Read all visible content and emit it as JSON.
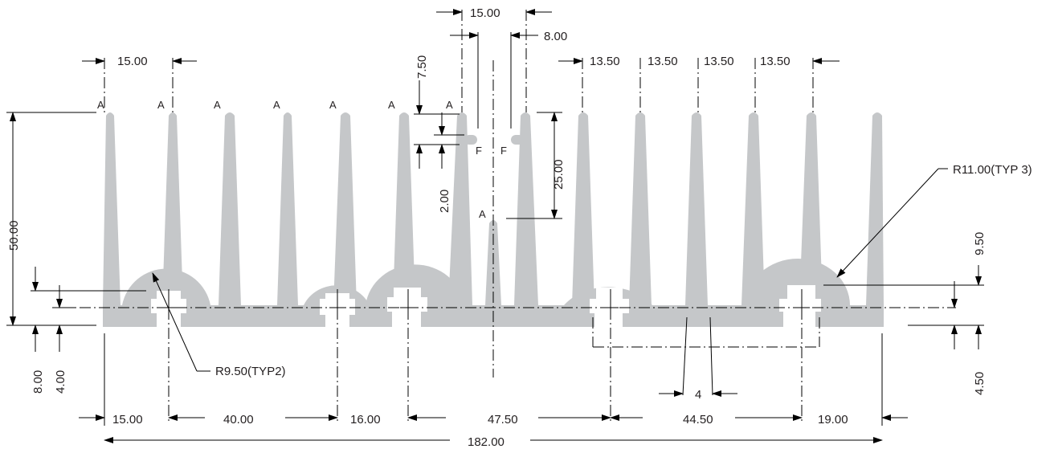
{
  "drawing": {
    "top_dims": {
      "fin_pitch_left": "15.00",
      "gap_center": "15.00",
      "gap_inner": "8.00",
      "pitch_right": [
        "13.50",
        "13.50",
        "13.50",
        "13.50"
      ],
      "step_height": "7.50"
    },
    "left_dims": {
      "overall_height": "50.00",
      "base_8": "8.00",
      "base_4": "4.00"
    },
    "center_dims": {
      "fin_height": "25.00",
      "hook_2": "2.00"
    },
    "right_dims": {
      "boss_height": "9.50",
      "base_thk": "4.50"
    },
    "bottom_dims": [
      "15.00",
      "40.00",
      "16.00",
      "47.50",
      "44.50",
      "19.00"
    ],
    "overall_width": "182.00",
    "notch_width": "4",
    "notes": {
      "r_small": "R9.50(TYP2)",
      "r_large": "R11.00(TYP 3)"
    },
    "labels": {
      "a": "A",
      "f": "F"
    }
  }
}
